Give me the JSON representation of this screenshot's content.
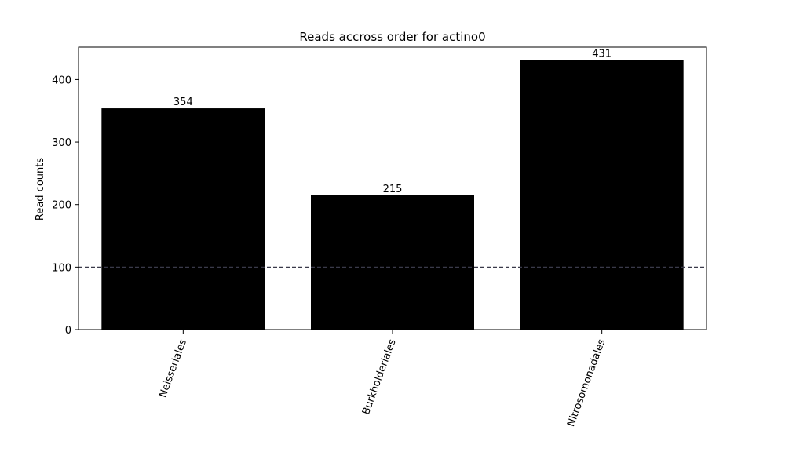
{
  "chart_data": {
    "type": "bar",
    "title": "Reads accross order for actino0",
    "xlabel": "",
    "ylabel": "Read counts",
    "categories": [
      "Neisseriales",
      "Burkholderiales",
      "Nitrosomonadales"
    ],
    "values": [
      354,
      215,
      431
    ],
    "data_labels": [
      "354",
      "215",
      "431"
    ],
    "ylim": [
      0,
      452
    ],
    "yticks": [
      0,
      100,
      200,
      300,
      400
    ],
    "ytick_labels": [
      "0",
      "100",
      "200",
      "300",
      "400"
    ],
    "reference_line": {
      "y": 100,
      "style": "dashed",
      "color": "#3a3a4a"
    },
    "bar_color": "#000000",
    "grid": false,
    "xtick_rotation": "70deg"
  }
}
